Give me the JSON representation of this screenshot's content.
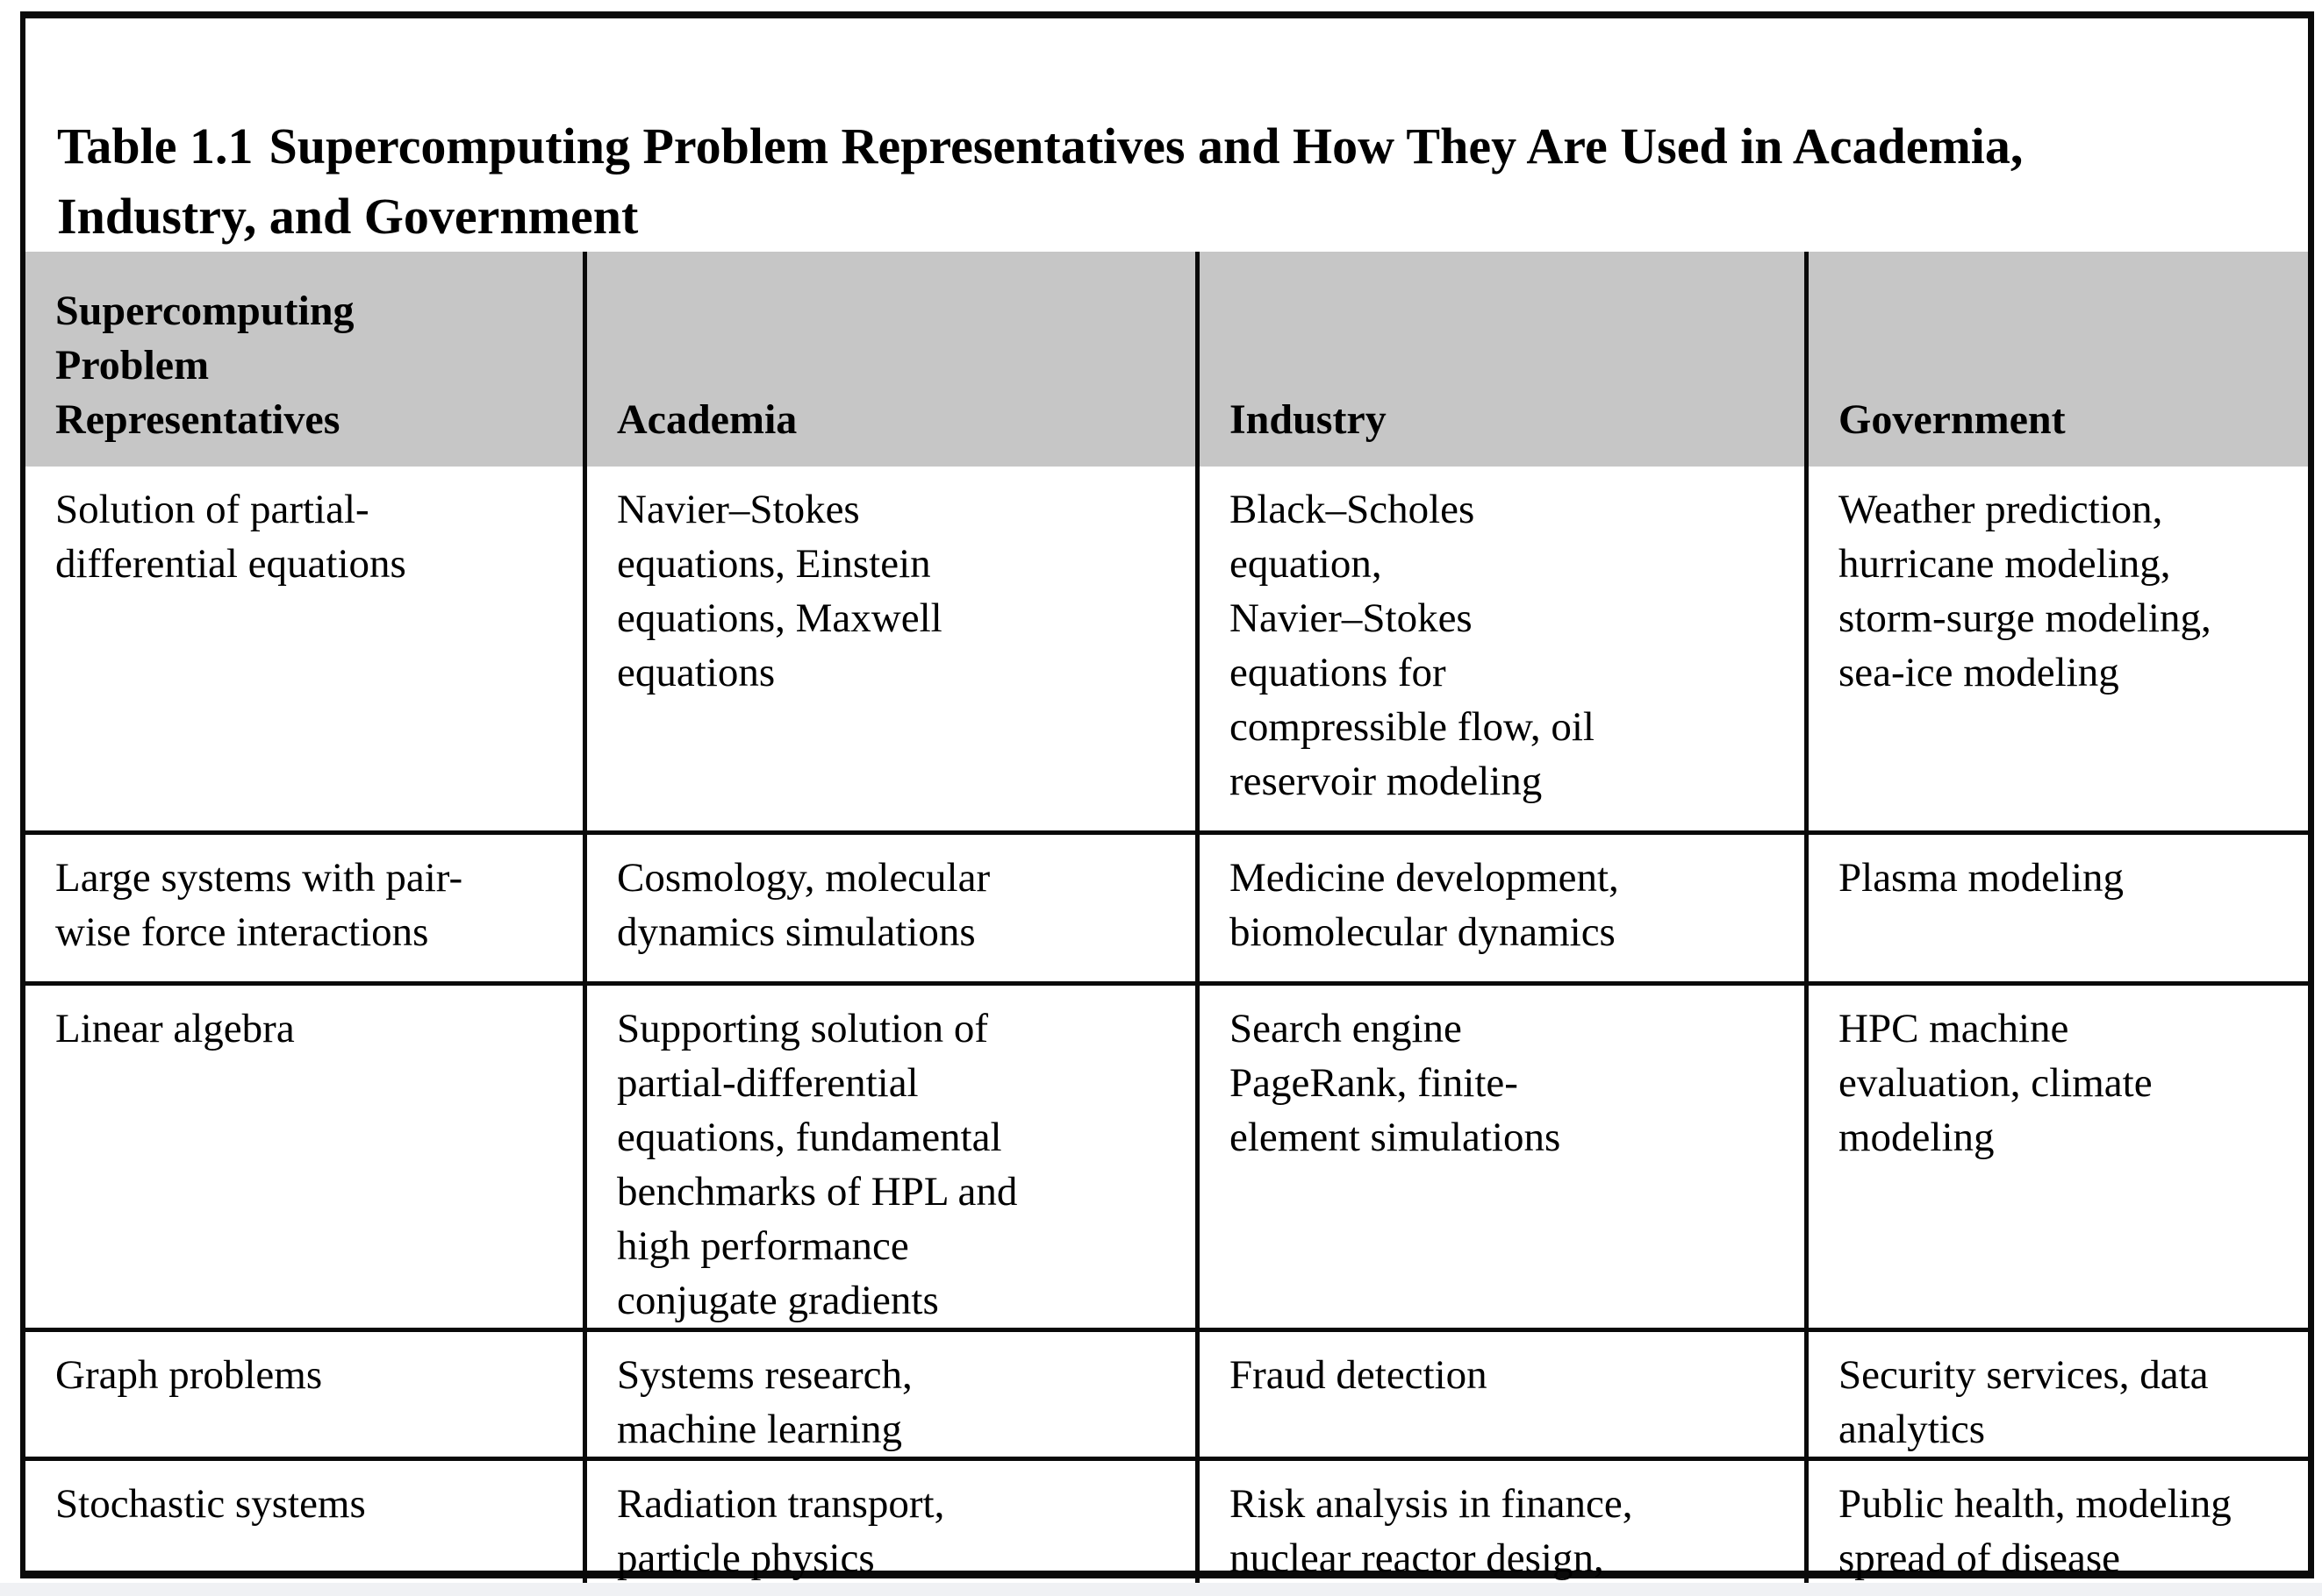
{
  "title": {
    "label": "Table 1.1",
    "text": "Supercomputing Problem Representatives and How They Are Used in Academia,\nIndustry, and Government"
  },
  "table": {
    "columns": [
      "Supercomputing\nProblem\nRepresentatives",
      "Academia",
      "Industry",
      "Government"
    ],
    "rows": [
      {
        "cells": [
          "Solution of partial-\ndifferential equations",
          "Navier–Stokes\nequations, Einstein\nequations, Maxwell\nequations",
          "Black–Scholes\nequation,\nNavier–Stokes\nequations for\ncompressible flow, oil\nreservoir modeling",
          "Weather prediction,\nhurricane modeling,\nstorm-surge modeling,\nsea-ice modeling"
        ]
      },
      {
        "cells": [
          "Large systems with pair-\nwise force interactions",
          "Cosmology, molecular\ndynamics simulations",
          "Medicine development,\nbiomolecular dynamics",
          "Plasma modeling"
        ]
      },
      {
        "cells": [
          "Linear algebra",
          "Supporting solution of\npartial-differential\nequations, fundamental\nbenchmarks of HPL and\nhigh performance\nconjugate gradients",
          "Search engine\nPageRank, finite-\nelement simulations",
          "HPC machine\nevaluation, climate\nmodeling"
        ]
      },
      {
        "cells": [
          "Graph problems",
          "Systems research,\nmachine learning",
          "Fraud detection",
          "Security services, data\nanalytics"
        ]
      },
      {
        "cells": [
          "Stochastic systems",
          "Radiation transport,\nparticle physics",
          "Risk analysis in finance,\nnuclear reactor design,\nprocess control",
          "Public health, modeling\nspread of disease"
        ]
      }
    ]
  },
  "colors": {
    "header_bg": "#c6c6c6",
    "border": "#0a0a0a",
    "text": "#000000",
    "page_bg": "#ffffff",
    "bottom_strip": "#f0f1f4"
  }
}
